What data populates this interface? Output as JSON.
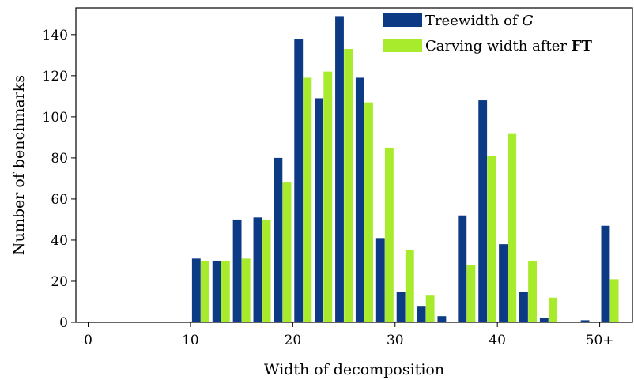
{
  "chart_data": {
    "type": "bar",
    "xlabel": "Width of decomposition",
    "ylabel": "Number of benchmarks",
    "xlim": [
      -1.2,
      53.2
    ],
    "ylim": [
      0,
      153
    ],
    "x_ticks": [
      0,
      10,
      20,
      30,
      40,
      50
    ],
    "x_tick_labels": [
      "0",
      "10",
      "20",
      "30",
      "40",
      "50+"
    ],
    "y_ticks": [
      0,
      20,
      40,
      60,
      80,
      100,
      120,
      140
    ],
    "bin_width": 2,
    "bin_starts": [
      10,
      12,
      14,
      16,
      18,
      20,
      22,
      24,
      26,
      28,
      30,
      32,
      34,
      36,
      38,
      40,
      42,
      44,
      46,
      48,
      50
    ],
    "legend_position": "top-right",
    "series": [
      {
        "name_parts": [
          {
            "text": "Treewidth of ",
            "style": "normal"
          },
          {
            "text": "G",
            "style": "italic"
          }
        ],
        "color": "#0d3a85",
        "values": [
          31,
          30,
          50,
          51,
          80,
          138,
          109,
          149,
          119,
          41,
          15,
          8,
          3,
          52,
          108,
          38,
          15,
          2,
          0,
          1,
          47
        ]
      },
      {
        "name_parts": [
          {
            "text": "Carving width after ",
            "style": "normal"
          },
          {
            "text": "FT",
            "style": "bold"
          }
        ],
        "color": "#a8ea2c",
        "values": [
          30,
          30,
          31,
          50,
          68,
          119,
          122,
          133,
          107,
          85,
          35,
          13,
          0,
          28,
          81,
          92,
          30,
          12,
          0,
          0,
          21
        ]
      }
    ]
  }
}
